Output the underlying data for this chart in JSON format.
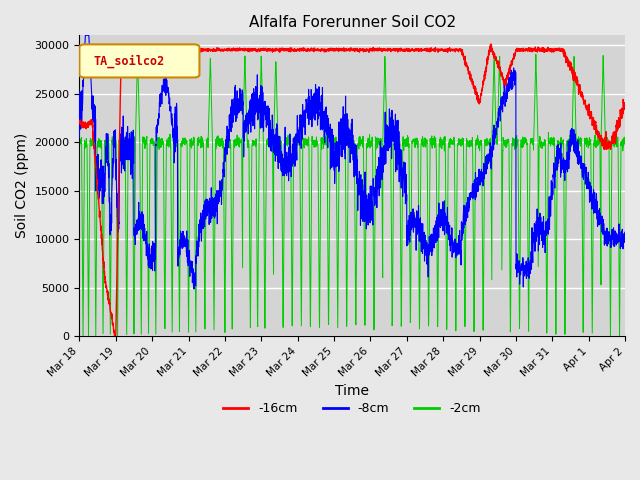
{
  "title": "Alfalfa Forerunner Soil CO2",
  "xlabel": "Time",
  "ylabel": "Soil CO2 (ppm)",
  "legend_label": "TA_soilco2",
  "line_labels": [
    "-16cm",
    "-8cm",
    "-2cm"
  ],
  "line_colors": [
    "#ff0000",
    "#0000ff",
    "#00cc00"
  ],
  "x_tick_labels": [
    "Mar 18",
    "Mar 19",
    "Mar 20",
    "Mar 21",
    "Mar 22",
    "Mar 23",
    "Mar 24",
    "Mar 25",
    "Mar 26",
    "Mar 27",
    "Mar 28",
    "Mar 29",
    "Mar 30",
    "Mar 31",
    "Apr 1",
    "Apr 2"
  ],
  "ylim": [
    0,
    31000
  ],
  "yticks": [
    0,
    5000,
    10000,
    15000,
    20000,
    25000,
    30000
  ],
  "bg_color": "#e8e8e8",
  "plot_bg_color": "#d8d8d8",
  "grid_color": "#ffffff"
}
